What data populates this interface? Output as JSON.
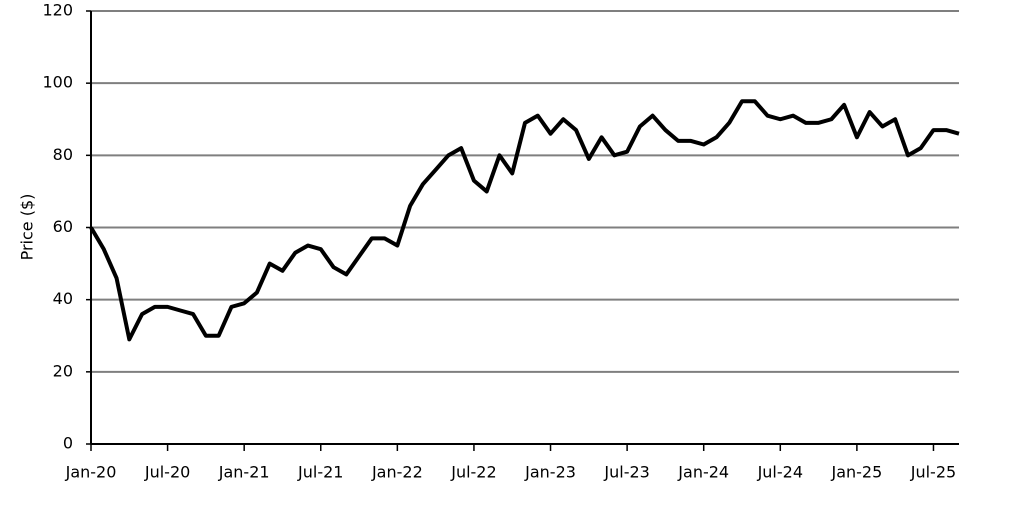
{
  "chart_data": {
    "type": "line",
    "y_label": "Price ($)",
    "x": [
      "2020-01",
      "2020-02",
      "2020-03",
      "2020-04",
      "2020-05",
      "2020-06",
      "2020-07",
      "2020-08",
      "2020-09",
      "2020-10",
      "2020-11",
      "2020-12",
      "2021-01",
      "2021-02",
      "2021-03",
      "2021-04",
      "2021-05",
      "2021-06",
      "2021-07",
      "2021-08",
      "2021-09",
      "2021-10",
      "2021-11",
      "2021-12",
      "2022-01",
      "2022-02",
      "2022-03",
      "2022-04",
      "2022-05",
      "2022-06",
      "2022-07",
      "2022-08",
      "2022-09",
      "2022-10",
      "2022-11",
      "2022-12",
      "2023-01",
      "2023-02",
      "2023-03",
      "2023-04",
      "2023-05",
      "2023-06",
      "2023-07",
      "2023-08",
      "2023-09",
      "2023-10",
      "2023-11",
      "2023-12",
      "2024-01",
      "2024-02",
      "2024-03",
      "2024-04",
      "2024-05",
      "2024-06",
      "2024-07",
      "2024-08",
      "2024-09",
      "2024-10",
      "2024-11",
      "2024-12",
      "2025-01",
      "2025-02",
      "2025-03",
      "2025-04",
      "2025-05",
      "2025-06",
      "2025-07",
      "2025-08",
      "2025-09"
    ],
    "series": [
      {
        "name": "Price",
        "color": "#000000",
        "values": [
          60,
          54,
          46,
          29,
          36,
          38,
          38,
          37,
          36,
          30,
          30,
          38,
          39,
          42,
          50,
          48,
          53,
          55,
          54,
          49,
          47,
          52,
          57,
          57,
          55,
          66,
          72,
          76,
          80,
          82,
          73,
          70,
          80,
          75,
          89,
          91,
          86,
          90,
          87,
          79,
          85,
          80,
          81,
          88,
          91,
          87,
          84,
          84,
          83,
          85,
          89,
          95,
          95,
          91,
          90,
          91,
          89,
          89,
          90,
          94,
          85,
          92,
          88,
          90,
          80,
          82,
          87,
          87,
          86
        ]
      }
    ],
    "xlim": [
      "2020-01",
      "2025-09"
    ],
    "xticks": [
      {
        "value": "2020-01",
        "label": "Jan-20"
      },
      {
        "value": "2020-07",
        "label": "Jul-20"
      },
      {
        "value": "2021-01",
        "label": "Jan-21"
      },
      {
        "value": "2021-07",
        "label": "Jul-21"
      },
      {
        "value": "2022-01",
        "label": "Jan-22"
      },
      {
        "value": "2022-07",
        "label": "Jul-22"
      },
      {
        "value": "2023-01",
        "label": "Jan-23"
      },
      {
        "value": "2023-07",
        "label": "Jul-23"
      },
      {
        "value": "2024-01",
        "label": "Jan-24"
      },
      {
        "value": "2024-07",
        "label": "Jul-24"
      },
      {
        "value": "2025-01",
        "label": "Jan-25"
      },
      {
        "value": "2025-07",
        "label": "Jul-25"
      }
    ],
    "ylim": [
      0,
      120
    ],
    "yticks": [
      0,
      20,
      40,
      60,
      80,
      100,
      120
    ],
    "grid": true
  }
}
